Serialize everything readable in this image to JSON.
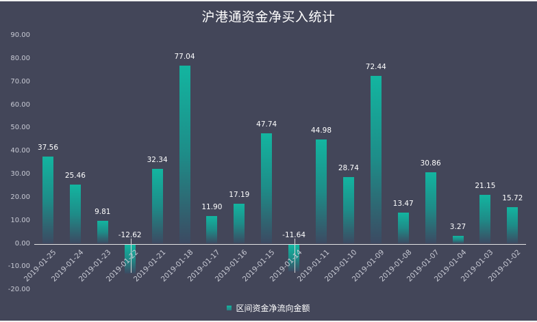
{
  "title": "沪港通资金净买入统计",
  "legend": {
    "label": "区间资金净流向金额",
    "color": "#13b5a0"
  },
  "colors": {
    "background": "#434659",
    "bar_top": "#13b5a0",
    "bar_bottom": "#3c4a62",
    "axis": "#e6e6e6"
  },
  "y_ticks": [
    "90.00",
    "80.00",
    "70.00",
    "60.00",
    "50.00",
    "40.00",
    "30.00",
    "20.00",
    "10.00",
    "0.00",
    "-10.00",
    "-20.00"
  ],
  "chart_data": {
    "type": "bar",
    "title": "沪港通资金净买入统计",
    "xlabel": "",
    "ylabel": "",
    "ylim": [
      -20,
      90
    ],
    "grid": false,
    "legend_position": "bottom",
    "categories": [
      "2019-01-25",
      "2019-01-24",
      "2019-01-23",
      "2019-01-22",
      "2019-01-21",
      "2019-01-18",
      "2019-01-17",
      "2019-01-16",
      "2019-01-15",
      "2019-01-14",
      "2019-01-11",
      "2019-01-10",
      "2019-01-09",
      "2019-01-08",
      "2019-01-07",
      "2019-01-04",
      "2019-01-03",
      "2019-01-02"
    ],
    "series": [
      {
        "name": "区间资金净流向金额",
        "values": [
          37.56,
          25.46,
          9.81,
          -12.62,
          32.34,
          77.04,
          11.9,
          17.19,
          47.74,
          -11.64,
          44.98,
          28.74,
          72.44,
          13.47,
          30.86,
          3.27,
          21.15,
          15.72
        ]
      }
    ],
    "value_labels": [
      "37.56",
      "25.46",
      "9.81",
      "-12.62",
      "32.34",
      "77.04",
      "11.90",
      "17.19",
      "47.74",
      "-11.64",
      "44.98",
      "28.74",
      "72.44",
      "13.47",
      "30.86",
      "3.27",
      "21.15",
      "15.72"
    ]
  }
}
